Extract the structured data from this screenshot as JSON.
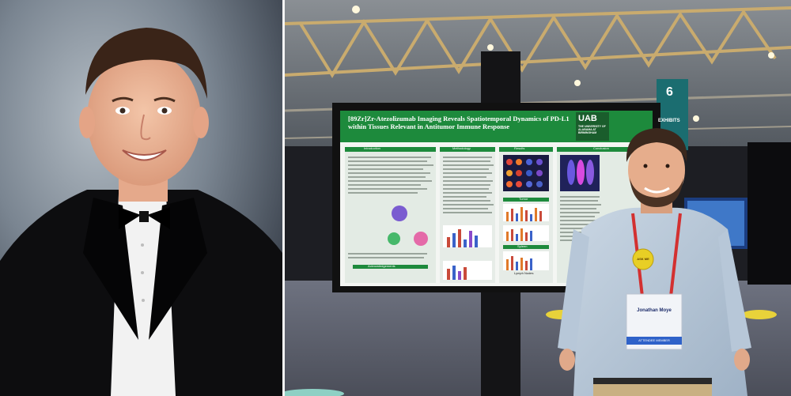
{
  "left_photo": {
    "description_label": "portrait"
  },
  "right_photo": {
    "poster": {
      "title_line1": "[89Zr]Zr-Atezolizumab Imaging Reveals Spatiotemporal Dynamics of PD-L1",
      "title_line2": "within Tissues Relevant in Antitumor Immune Response",
      "logo_main": "UAB",
      "logo_line1": "THE UNIVERSITY OF",
      "logo_line2": "ALABAMA AT BIRMINGHAM",
      "section_introduction": "Introduction",
      "section_methods": "Methodology",
      "section_results": "Results",
      "section_tumor": "Tumor",
      "section_spleen": "Spleen",
      "section_lymph": "Lymph Nodes",
      "section_conclusion": "Conclusion",
      "section_acknowledgements": "Acknowledgements"
    },
    "hall_sign_number": "6",
    "hall_sign_text": "EXHIBITS",
    "badge": {
      "name": "Jonathan Moye",
      "role": "ATTENDEE MEMBER"
    },
    "button_pin_text": "ASK ME"
  },
  "colors": {
    "poster_green": "#1d8a3c",
    "screen_bezel": "#111111",
    "floor": "#5a5d69"
  }
}
